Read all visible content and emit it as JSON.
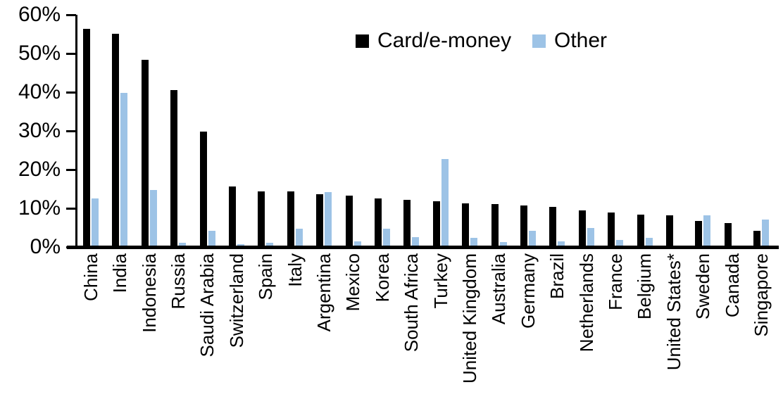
{
  "chart_data": {
    "type": "bar",
    "title": "",
    "xlabel": "",
    "ylabel": "",
    "ylim": [
      0,
      60
    ],
    "ytick_labels": [
      "0%",
      "10%",
      "20%",
      "30%",
      "40%",
      "50%",
      "60%"
    ],
    "grid": false,
    "legend_position": "top-center",
    "categories": [
      "China",
      "India",
      "Indonesia",
      "Russia",
      "Saudi Arabia",
      "Switzerland",
      "Spain",
      "Italy",
      "Argentina",
      "Mexico",
      "Korea",
      "South Africa",
      "Turkey",
      "United Kingdom",
      "Australia",
      "Germany",
      "Brazil",
      "Netherlands",
      "France",
      "Belgium",
      "United States*",
      "Sweden",
      "Canada",
      "Singapore"
    ],
    "series": [
      {
        "name": "Card/e-money",
        "color": "#000000",
        "values": [
          56.3,
          55.0,
          48.3,
          40.5,
          29.9,
          15.7,
          14.4,
          14.3,
          13.6,
          13.2,
          12.5,
          12.1,
          11.8,
          11.3,
          11.0,
          10.8,
          10.3,
          9.5,
          8.9,
          8.4,
          8.1,
          6.7,
          6.2,
          4.2
        ]
      },
      {
        "name": "Other",
        "color": "#9DC3E6",
        "values": [
          12.5,
          39.8,
          14.7,
          1.0,
          4.1,
          0.8,
          1.1,
          4.7,
          14.1,
          1.5,
          4.8,
          2.6,
          22.7,
          2.4,
          1.2,
          4.2,
          1.4,
          4.9,
          1.9,
          2.3,
          0.4,
          8.2,
          0,
          7.0
        ]
      }
    ]
  }
}
